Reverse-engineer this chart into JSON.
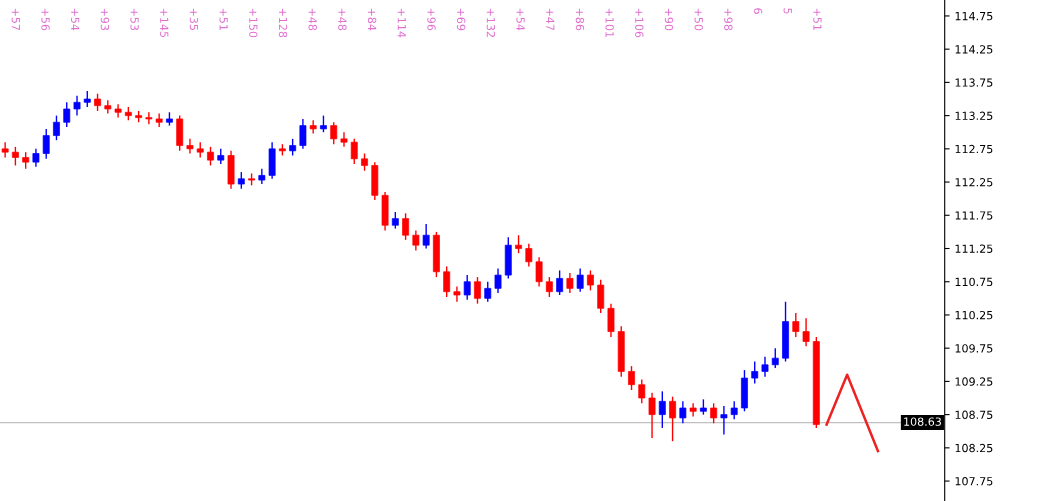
{
  "chart_data": {
    "type": "candlestick",
    "categories": [
      null,
      null,
      null,
      null,
      null,
      null,
      null,
      null,
      null,
      null,
      null,
      null,
      null,
      null,
      null,
      null,
      null,
      null,
      null,
      null,
      null,
      null,
      null,
      null,
      null,
      null,
      null,
      null,
      null,
      null,
      null,
      null,
      null,
      null,
      null,
      null,
      null,
      null,
      null,
      null,
      null,
      null,
      null,
      null,
      null,
      null,
      null,
      null,
      null,
      null,
      null,
      null,
      null,
      null,
      null,
      null,
      null,
      null,
      null,
      null,
      null,
      null,
      null,
      null,
      null,
      null,
      null,
      null,
      null,
      null,
      null,
      null,
      null,
      null,
      null,
      null,
      null,
      null,
      null,
      null,
      null,
      null,
      null,
      null,
      null,
      null,
      null,
      null,
      null,
      null,
      null,
      null
    ],
    "ohlc": [
      [
        112.75,
        112.85,
        112.62,
        112.7
      ],
      [
        112.7,
        112.78,
        112.5,
        112.62
      ],
      [
        112.62,
        112.7,
        112.45,
        112.55
      ],
      [
        112.55,
        112.75,
        112.48,
        112.68
      ],
      [
        112.68,
        113.05,
        112.6,
        112.95
      ],
      [
        112.95,
        113.25,
        112.88,
        113.15
      ],
      [
        113.15,
        113.45,
        113.08,
        113.35
      ],
      [
        113.35,
        113.55,
        113.25,
        113.45
      ],
      [
        113.45,
        113.62,
        113.38,
        113.5
      ],
      [
        113.5,
        113.58,
        113.32,
        113.4
      ],
      [
        113.4,
        113.48,
        113.28,
        113.35
      ],
      [
        113.35,
        113.42,
        113.22,
        113.3
      ],
      [
        113.3,
        113.38,
        113.18,
        113.25
      ],
      [
        113.25,
        113.32,
        113.15,
        113.22
      ],
      [
        113.22,
        113.3,
        113.12,
        113.2
      ],
      [
        113.2,
        113.28,
        113.08,
        113.15
      ],
      [
        113.15,
        113.3,
        113.1,
        113.2
      ],
      [
        113.2,
        113.25,
        112.72,
        112.8
      ],
      [
        112.8,
        112.9,
        112.68,
        112.75
      ],
      [
        112.75,
        112.85,
        112.62,
        112.7
      ],
      [
        112.7,
        112.78,
        112.5,
        112.58
      ],
      [
        112.58,
        112.75,
        112.52,
        112.65
      ],
      [
        112.65,
        112.72,
        112.15,
        112.22
      ],
      [
        112.22,
        112.4,
        112.15,
        112.3
      ],
      [
        112.3,
        112.38,
        112.2,
        112.28
      ],
      [
        112.28,
        112.45,
        112.22,
        112.35
      ],
      [
        112.35,
        112.85,
        112.3,
        112.75
      ],
      [
        112.75,
        112.82,
        112.65,
        112.72
      ],
      [
        112.72,
        112.9,
        112.65,
        112.8
      ],
      [
        112.8,
        113.2,
        112.75,
        113.1
      ],
      [
        113.1,
        113.18,
        112.98,
        113.05
      ],
      [
        113.05,
        113.25,
        113.0,
        113.1
      ],
      [
        113.1,
        113.15,
        112.82,
        112.9
      ],
      [
        112.9,
        113.0,
        112.78,
        112.85
      ],
      [
        112.85,
        112.9,
        112.52,
        112.6
      ],
      [
        112.6,
        112.68,
        112.42,
        112.5
      ],
      [
        112.5,
        112.55,
        111.98,
        112.05
      ],
      [
        112.05,
        112.1,
        111.52,
        111.6
      ],
      [
        111.6,
        111.8,
        111.55,
        111.7
      ],
      [
        111.7,
        111.78,
        111.38,
        111.45
      ],
      [
        111.45,
        111.52,
        111.22,
        111.3
      ],
      [
        111.3,
        111.62,
        111.25,
        111.45
      ],
      [
        111.45,
        111.5,
        110.82,
        110.9
      ],
      [
        110.9,
        110.98,
        110.52,
        110.6
      ],
      [
        110.6,
        110.68,
        110.45,
        110.55
      ],
      [
        110.55,
        110.85,
        110.48,
        110.75
      ],
      [
        110.75,
        110.82,
        110.42,
        110.5
      ],
      [
        110.5,
        110.75,
        110.45,
        110.65
      ],
      [
        110.65,
        110.95,
        110.58,
        110.85
      ],
      [
        110.85,
        111.42,
        110.8,
        111.3
      ],
      [
        111.3,
        111.45,
        111.18,
        111.25
      ],
      [
        111.25,
        111.32,
        110.98,
        111.05
      ],
      [
        111.05,
        111.12,
        110.68,
        110.75
      ],
      [
        110.75,
        110.82,
        110.52,
        110.6
      ],
      [
        110.6,
        110.92,
        110.55,
        110.8
      ],
      [
        110.8,
        110.88,
        110.58,
        110.65
      ],
      [
        110.65,
        110.95,
        110.6,
        110.85
      ],
      [
        110.85,
        110.92,
        110.62,
        110.7
      ],
      [
        110.7,
        110.78,
        110.28,
        110.35
      ],
      [
        110.35,
        110.42,
        109.92,
        110.0
      ],
      [
        110.0,
        110.08,
        109.32,
        109.4
      ],
      [
        109.4,
        109.48,
        109.12,
        109.2
      ],
      [
        109.2,
        109.28,
        108.92,
        109.0
      ],
      [
        109.0,
        109.08,
        108.4,
        108.75
      ],
      [
        108.75,
        109.1,
        108.55,
        108.95
      ],
      [
        108.95,
        109.02,
        108.35,
        108.7
      ],
      [
        108.7,
        108.95,
        108.62,
        108.85
      ],
      [
        108.85,
        108.92,
        108.72,
        108.8
      ],
      [
        108.8,
        108.98,
        108.75,
        108.85
      ],
      [
        108.85,
        108.92,
        108.62,
        108.7
      ],
      [
        108.7,
        108.88,
        108.45,
        108.75
      ],
      [
        108.75,
        108.95,
        108.68,
        108.85
      ],
      [
        108.85,
        109.42,
        108.8,
        109.3
      ],
      [
        109.3,
        109.55,
        109.22,
        109.4
      ],
      [
        109.4,
        109.62,
        109.32,
        109.5
      ],
      [
        109.5,
        109.75,
        109.45,
        109.6
      ],
      [
        109.6,
        110.45,
        109.55,
        110.15
      ],
      [
        110.15,
        110.28,
        109.92,
        110.0
      ],
      [
        110.0,
        110.2,
        109.78,
        109.85
      ],
      [
        109.85,
        109.92,
        108.55,
        108.6
      ],
      null,
      null,
      null,
      null,
      null,
      null,
      null,
      null,
      null,
      null,
      null,
      null
    ],
    "colors": [
      "#ff0000",
      "#ff0000",
      "#ff0000",
      "#0000ff",
      "#0000ff",
      "#0000ff",
      "#0000ff",
      "#0000ff",
      "#0000ff",
      "#ff0000",
      "#ff0000",
      "#ff0000",
      "#ff0000",
      "#ff0000",
      "#ff0000",
      "#ff0000",
      "#0000ff",
      "#ff0000",
      "#ff0000",
      "#ff0000",
      "#ff0000",
      "#0000ff",
      "#ff0000",
      "#0000ff",
      "#ff0000",
      "#0000ff",
      "#0000ff",
      "#ff0000",
      "#0000ff",
      "#0000ff",
      "#ff0000",
      "#0000ff",
      "#ff0000",
      "#ff0000",
      "#ff0000",
      "#ff0000",
      "#ff0000",
      "#ff0000",
      "#0000ff",
      "#ff0000",
      "#ff0000",
      "#0000ff",
      "#ff0000",
      "#ff0000",
      "#ff0000",
      "#0000ff",
      "#ff0000",
      "#0000ff",
      "#0000ff",
      "#0000ff",
      "#ff0000",
      "#ff0000",
      "#ff0000",
      "#ff0000",
      "#0000ff",
      "#ff0000",
      "#0000ff",
      "#ff0000",
      "#ff0000",
      "#ff0000",
      "#ff0000",
      "#ff0000",
      "#ff0000",
      "#ff0000",
      "#0000ff",
      "#ff0000",
      "#0000ff",
      "#ff0000",
      "#0000ff",
      "#ff0000",
      "#0000ff",
      "#0000ff",
      "#0000ff",
      "#0000ff",
      "#0000ff",
      "#0000ff",
      "#0000ff",
      "#ff0000",
      "#ff0000",
      "#ff0000",
      null,
      null,
      null,
      null,
      null,
      null,
      null,
      null,
      null,
      null,
      null,
      null
    ],
    "series": [
      {
        "type": "line",
        "color": "#ee2222",
        "values": [
          null,
          null,
          null,
          null,
          null,
          null,
          null,
          null,
          null,
          null,
          null,
          null,
          null,
          null,
          null,
          null,
          null,
          null,
          null,
          null,
          null,
          null,
          null,
          null,
          null,
          null,
          null,
          null,
          null,
          null,
          null,
          null,
          null,
          null,
          null,
          null,
          null,
          null,
          null,
          null,
          null,
          null,
          null,
          null,
          null,
          null,
          null,
          null,
          null,
          null,
          null,
          null,
          null,
          null,
          null,
          null,
          null,
          null,
          null,
          null,
          null,
          null,
          null,
          null,
          null,
          null,
          null,
          null,
          null,
          null,
          null,
          null,
          null,
          null,
          null,
          null,
          null,
          null,
          null,
          null,
          108.6,
          null,
          109.35,
          null,
          null,
          108.2,
          null,
          null,
          null,
          null,
          null,
          null
        ]
      }
    ],
    "ylim": [
      107.45,
      114.99
    ],
    "yticks": [
      {
        "value": 107.75,
        "label": "107.75"
      },
      {
        "value": 108.25,
        "label": "108.25"
      },
      {
        "value": 108.75,
        "label": "108.75"
      },
      {
        "value": 109.25,
        "label": "109.25"
      },
      {
        "value": 109.75,
        "label": "109.75"
      },
      {
        "value": 110.25,
        "label": "110.25"
      },
      {
        "value": 110.75,
        "label": "110.75"
      },
      {
        "value": 111.25,
        "label": "111.25"
      },
      {
        "value": 111.75,
        "label": "111.75"
      },
      {
        "value": 112.25,
        "label": "112.25"
      },
      {
        "value": 112.75,
        "label": "112.75"
      },
      {
        "value": 113.25,
        "label": "113.25"
      },
      {
        "value": 113.75,
        "label": "113.75"
      },
      {
        "value": 114.25,
        "label": "114.25"
      },
      {
        "value": 114.75,
        "label": "114.75"
      }
    ],
    "ref_lines": [
      {
        "axis": "y",
        "value": 108.63,
        "label": "108.63",
        "color": "#c0c0c0"
      }
    ],
    "tick_labels": "y",
    "grid": false,
    "annotations": [
      "+57",
      "+56",
      "+54",
      "+93",
      "+53",
      "+145",
      "+35",
      "+51",
      "+150",
      "+128",
      "+48",
      "+48",
      "+84",
      "+114",
      "+96",
      "+69",
      "+132",
      "+54",
      "+47",
      "+86",
      "+101",
      "+106",
      "+90",
      "+50",
      "+98",
      "6",
      "5",
      "+51"
    ]
  }
}
